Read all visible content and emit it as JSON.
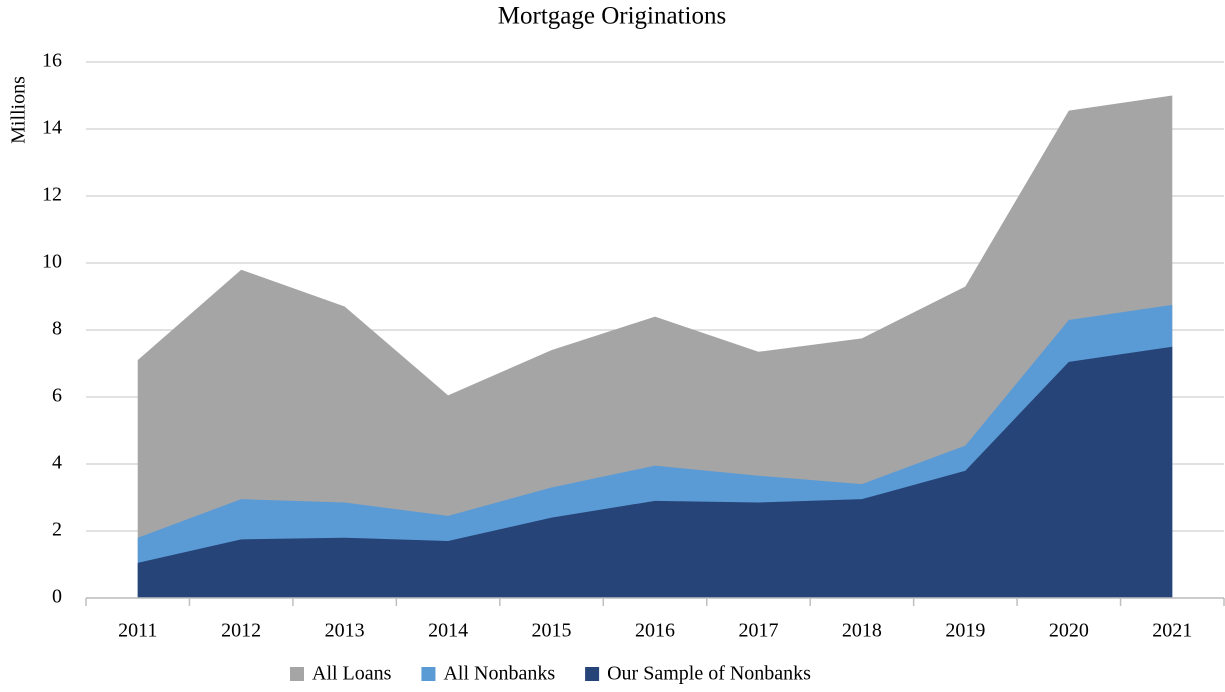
{
  "chart_data": {
    "type": "area",
    "title": "Mortgage Originations",
    "y_label": "Millions",
    "categories": [
      "2011",
      "2012",
      "2013",
      "2014",
      "2015",
      "2016",
      "2017",
      "2018",
      "2019",
      "2020",
      "2021"
    ],
    "series": [
      {
        "name": "All Loans",
        "color": "#a5a5a5",
        "values": [
          7.1,
          9.8,
          8.7,
          6.05,
          7.4,
          8.4,
          7.35,
          7.75,
          9.3,
          14.55,
          15.0
        ]
      },
      {
        "name": "All Nonbanks",
        "color": "#5b9bd5",
        "values": [
          1.8,
          2.95,
          2.85,
          2.45,
          3.3,
          3.95,
          3.65,
          3.4,
          4.55,
          8.3,
          8.75
        ]
      },
      {
        "name": "Our Sample of Nonbanks",
        "color": "#264478",
        "values": [
          1.05,
          1.75,
          1.8,
          1.7,
          2.4,
          2.9,
          2.85,
          2.95,
          3.8,
          7.05,
          7.5
        ]
      }
    ],
    "ylim": [
      0,
      16
    ],
    "yticks": [
      0,
      2,
      4,
      6,
      8,
      10,
      12,
      14,
      16
    ],
    "grid": true,
    "legend": "bottom"
  }
}
